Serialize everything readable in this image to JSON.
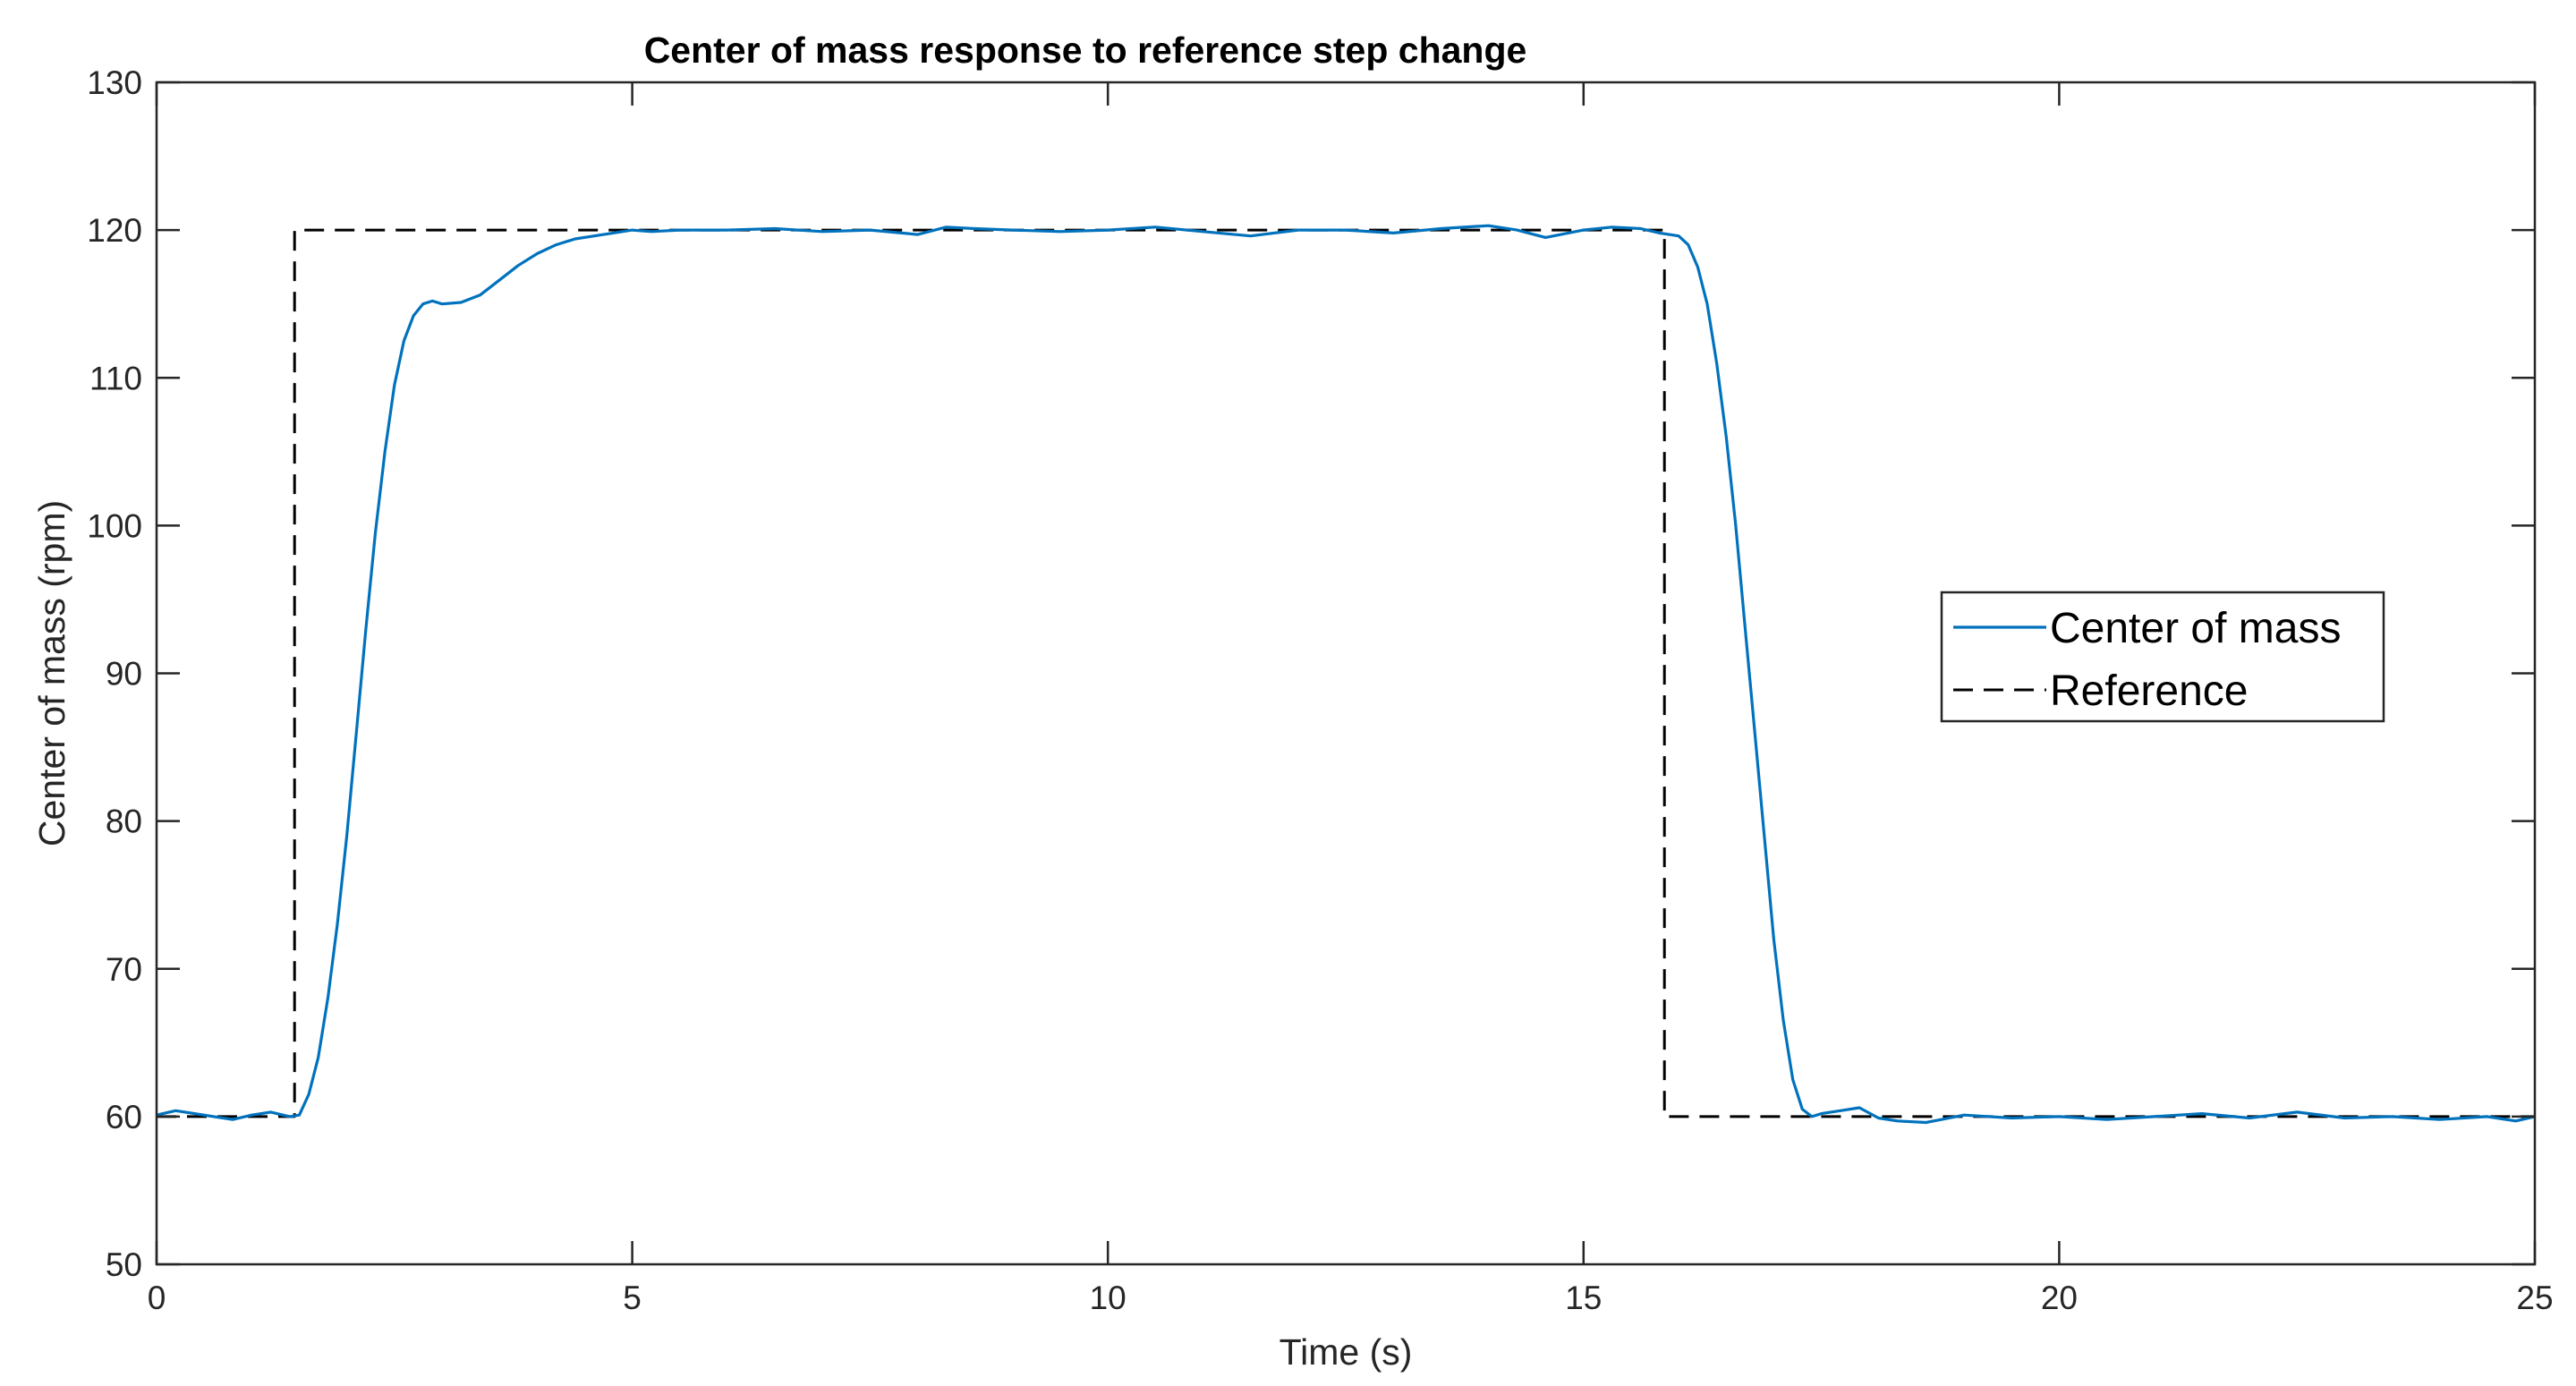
{
  "chart_data": {
    "type": "line",
    "title": "Center of mass response to reference step change",
    "xlabel": "Time (s)",
    "ylabel": "Center of mass (rpm)",
    "xlim": [
      0,
      25
    ],
    "ylim": [
      50,
      130
    ],
    "xticks": [
      0,
      5,
      10,
      15,
      20,
      25
    ],
    "yticks": [
      50,
      60,
      70,
      80,
      90,
      100,
      110,
      120,
      130
    ],
    "grid": false,
    "legend_position": "right",
    "series": [
      {
        "name": "Center of mass",
        "color": "#0072BD",
        "style": "solid",
        "x": [
          0,
          0.2,
          0.4,
          0.6,
          0.8,
          1.0,
          1.2,
          1.4,
          1.5,
          1.6,
          1.7,
          1.8,
          1.9,
          2.0,
          2.1,
          2.2,
          2.3,
          2.4,
          2.5,
          2.6,
          2.7,
          2.8,
          2.9,
          3.0,
          3.2,
          3.4,
          3.6,
          3.8,
          4.0,
          4.2,
          4.4,
          4.6,
          4.8,
          5.0,
          5.2,
          5.5,
          6.0,
          6.5,
          7.0,
          7.5,
          8.0,
          8.3,
          8.6,
          9.0,
          9.5,
          10.0,
          10.5,
          11.0,
          11.5,
          12.0,
          12.5,
          13.0,
          13.5,
          14.0,
          14.3,
          14.6,
          15.0,
          15.3,
          15.6,
          15.8,
          16.0,
          16.1,
          16.2,
          16.3,
          16.4,
          16.5,
          16.6,
          16.7,
          16.8,
          16.9,
          17.0,
          17.1,
          17.2,
          17.3,
          17.4,
          17.5,
          17.7,
          17.9,
          18.1,
          18.3,
          18.6,
          19.0,
          19.5,
          20.0,
          20.5,
          21.0,
          21.5,
          22.0,
          22.5,
          23.0,
          23.5,
          24.0,
          24.5,
          24.8,
          25.0
        ],
        "y": [
          60.1,
          60.4,
          60.2,
          60.0,
          59.8,
          60.1,
          60.3,
          60.0,
          60.1,
          61.5,
          64,
          68,
          73,
          79,
          86,
          93,
          99.5,
          105,
          109.5,
          112.5,
          114.2,
          115.0,
          115.2,
          115.0,
          115.1,
          115.6,
          116.6,
          117.6,
          118.4,
          119.0,
          119.4,
          119.6,
          119.8,
          120.0,
          119.9,
          120.0,
          120.0,
          120.1,
          119.9,
          120.0,
          119.7,
          120.2,
          120.1,
          120.0,
          119.9,
          120.0,
          120.2,
          119.9,
          119.6,
          120.0,
          120.0,
          119.8,
          120.1,
          120.3,
          120.0,
          119.5,
          120.0,
          120.2,
          120.1,
          119.8,
          119.6,
          119.0,
          117.5,
          115,
          111,
          106,
          100,
          93,
          86,
          79,
          72,
          66.5,
          62.5,
          60.5,
          60.0,
          60.2,
          60.4,
          60.6,
          59.9,
          59.7,
          59.6,
          60.1,
          59.9,
          60.0,
          59.8,
          60.0,
          60.2,
          59.9,
          60.3,
          59.9,
          60.0,
          59.8,
          60.0,
          59.7,
          60.0
        ]
      },
      {
        "name": "Reference",
        "color": "#000000",
        "style": "dashed",
        "x": [
          0,
          1.45,
          1.45,
          15.85,
          15.85,
          25
        ],
        "y": [
          60,
          60,
          120,
          120,
          60,
          60
        ]
      }
    ]
  }
}
